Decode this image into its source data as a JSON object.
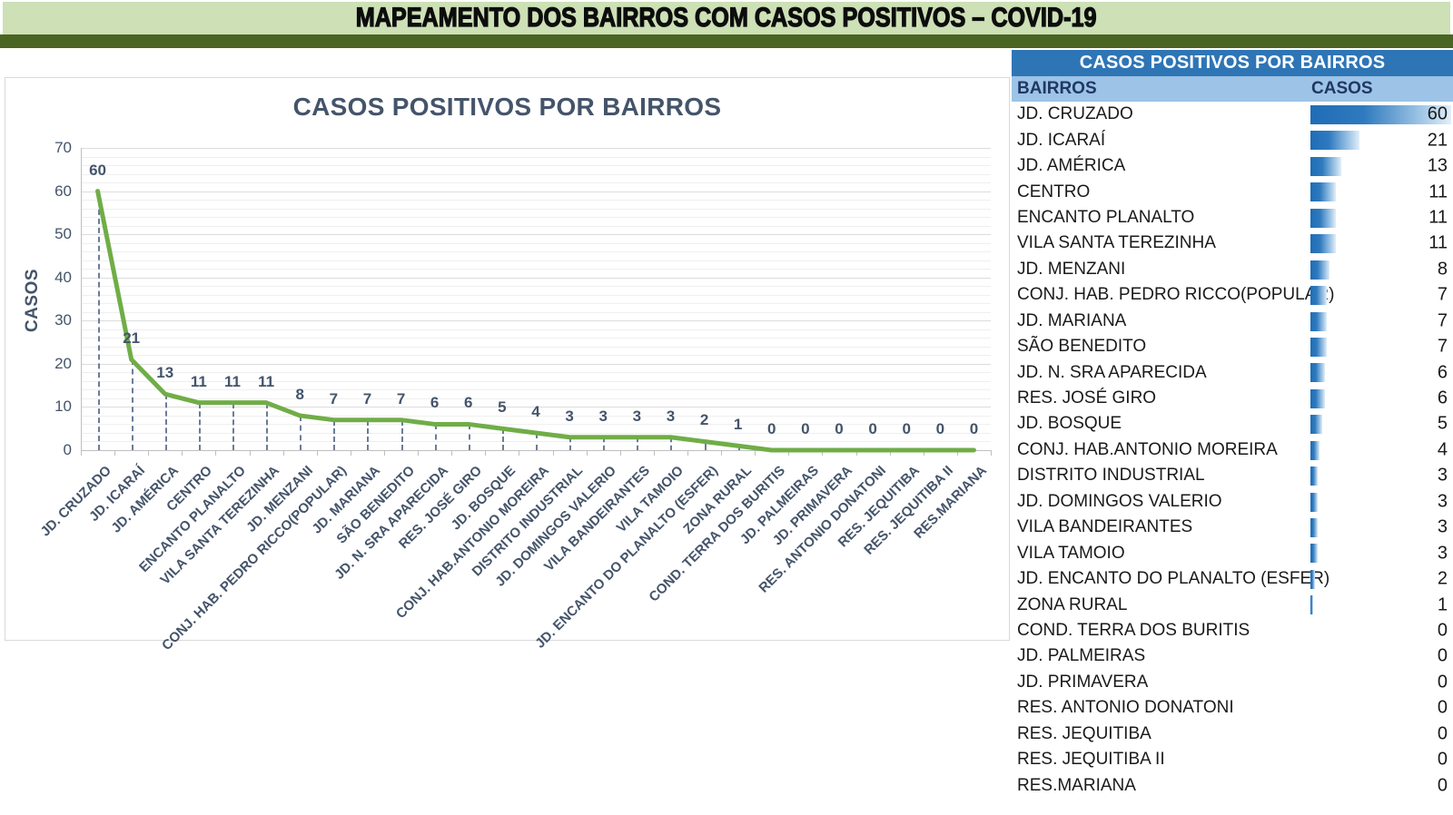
{
  "banner": {
    "title": "MAPEAMENTO DOS BAIRROS COM CASOS POSITIVOS – COVID-19",
    "bg_color": "#cde0b6",
    "bar_color": "#4a6424"
  },
  "chart_data": {
    "type": "line",
    "title": "CASOS POSITIVOS POR BAIRROS",
    "xlabel": "",
    "ylabel": "CASOS",
    "ylim": [
      0,
      70
    ],
    "ytick_step": 10,
    "minor_gridline_step": 2,
    "grid": true,
    "legend": "none",
    "line_color": "#70ad47",
    "label_color": "#44546a",
    "drop_lines": "dashed",
    "categories": [
      "JD. CRUZADO",
      "JD. ICARAÍ",
      "JD. AMÉRICA",
      "CENTRO",
      "ENCANTO PLANALTO",
      "VILA SANTA TEREZINHA",
      "JD. MENZANI",
      "CONJ. HAB. PEDRO RICCO(POPULAR)",
      "JD. MARIANA",
      "SÃO BENEDITO",
      "JD. N. SRA APARECIDA",
      "RES. JOSÉ GIRO",
      "JD. BOSQUE",
      "CONJ. HAB.ANTONIO MOREIRA",
      "DISTRITO INDUSTRIAL",
      "JD. DOMINGOS VALERIO",
      "VILA BANDEIRANTES",
      "VILA TAMOIO",
      "JD. ENCANTO DO PLANALTO (ESFER)",
      "ZONA RURAL",
      "COND. TERRA DOS BURITIS",
      "JD. PALMEIRAS",
      "JD. PRIMAVERA",
      "RES. ANTONIO DONATONI",
      "RES. JEQUITIBA",
      "RES. JEQUITIBA II",
      "RES.MARIANA"
    ],
    "values": [
      60,
      21,
      13,
      11,
      11,
      11,
      8,
      7,
      7,
      7,
      6,
      6,
      5,
      4,
      3,
      3,
      3,
      3,
      2,
      1,
      0,
      0,
      0,
      0,
      0,
      0,
      0
    ]
  },
  "table": {
    "title": "CASOS POSITIVOS POR BAIRROS",
    "columns": [
      "BAIRROS",
      "CASOS"
    ],
    "header_bg": "#2e75b6",
    "subheader_bg": "#9dc3e6",
    "bar_color": "#1e6db6",
    "bar_max": 60,
    "rows": [
      {
        "bairro": "JD. CRUZADO",
        "casos": 60
      },
      {
        "bairro": "JD. ICARAÍ",
        "casos": 21
      },
      {
        "bairro": "JD. AMÉRICA",
        "casos": 13
      },
      {
        "bairro": "CENTRO",
        "casos": 11
      },
      {
        "bairro": "ENCANTO PLANALTO",
        "casos": 11
      },
      {
        "bairro": "VILA SANTA TEREZINHA",
        "casos": 11
      },
      {
        "bairro": "JD. MENZANI",
        "casos": 8
      },
      {
        "bairro": "CONJ. HAB. PEDRO RICCO(POPULAR)",
        "casos": 7
      },
      {
        "bairro": "JD. MARIANA",
        "casos": 7
      },
      {
        "bairro": "SÃO BENEDITO",
        "casos": 7
      },
      {
        "bairro": "JD. N. SRA APARECIDA",
        "casos": 6
      },
      {
        "bairro": "RES. JOSÉ GIRO",
        "casos": 6
      },
      {
        "bairro": "JD. BOSQUE",
        "casos": 5
      },
      {
        "bairro": "CONJ. HAB.ANTONIO MOREIRA",
        "casos": 4
      },
      {
        "bairro": "DISTRITO INDUSTRIAL",
        "casos": 3
      },
      {
        "bairro": "JD. DOMINGOS VALERIO",
        "casos": 3
      },
      {
        "bairro": "VILA BANDEIRANTES",
        "casos": 3
      },
      {
        "bairro": "VILA TAMOIO",
        "casos": 3
      },
      {
        "bairro": "JD. ENCANTO DO PLANALTO (ESFER)",
        "casos": 2
      },
      {
        "bairro": "ZONA RURAL",
        "casos": 1
      },
      {
        "bairro": "COND. TERRA DOS BURITIS",
        "casos": 0
      },
      {
        "bairro": "JD. PALMEIRAS",
        "casos": 0
      },
      {
        "bairro": "JD. PRIMAVERA",
        "casos": 0
      },
      {
        "bairro": "RES. ANTONIO DONATONI",
        "casos": 0
      },
      {
        "bairro": "RES. JEQUITIBA",
        "casos": 0
      },
      {
        "bairro": "RES. JEQUITIBA II",
        "casos": 0
      },
      {
        "bairro": "RES.MARIANA",
        "casos": 0
      }
    ]
  }
}
